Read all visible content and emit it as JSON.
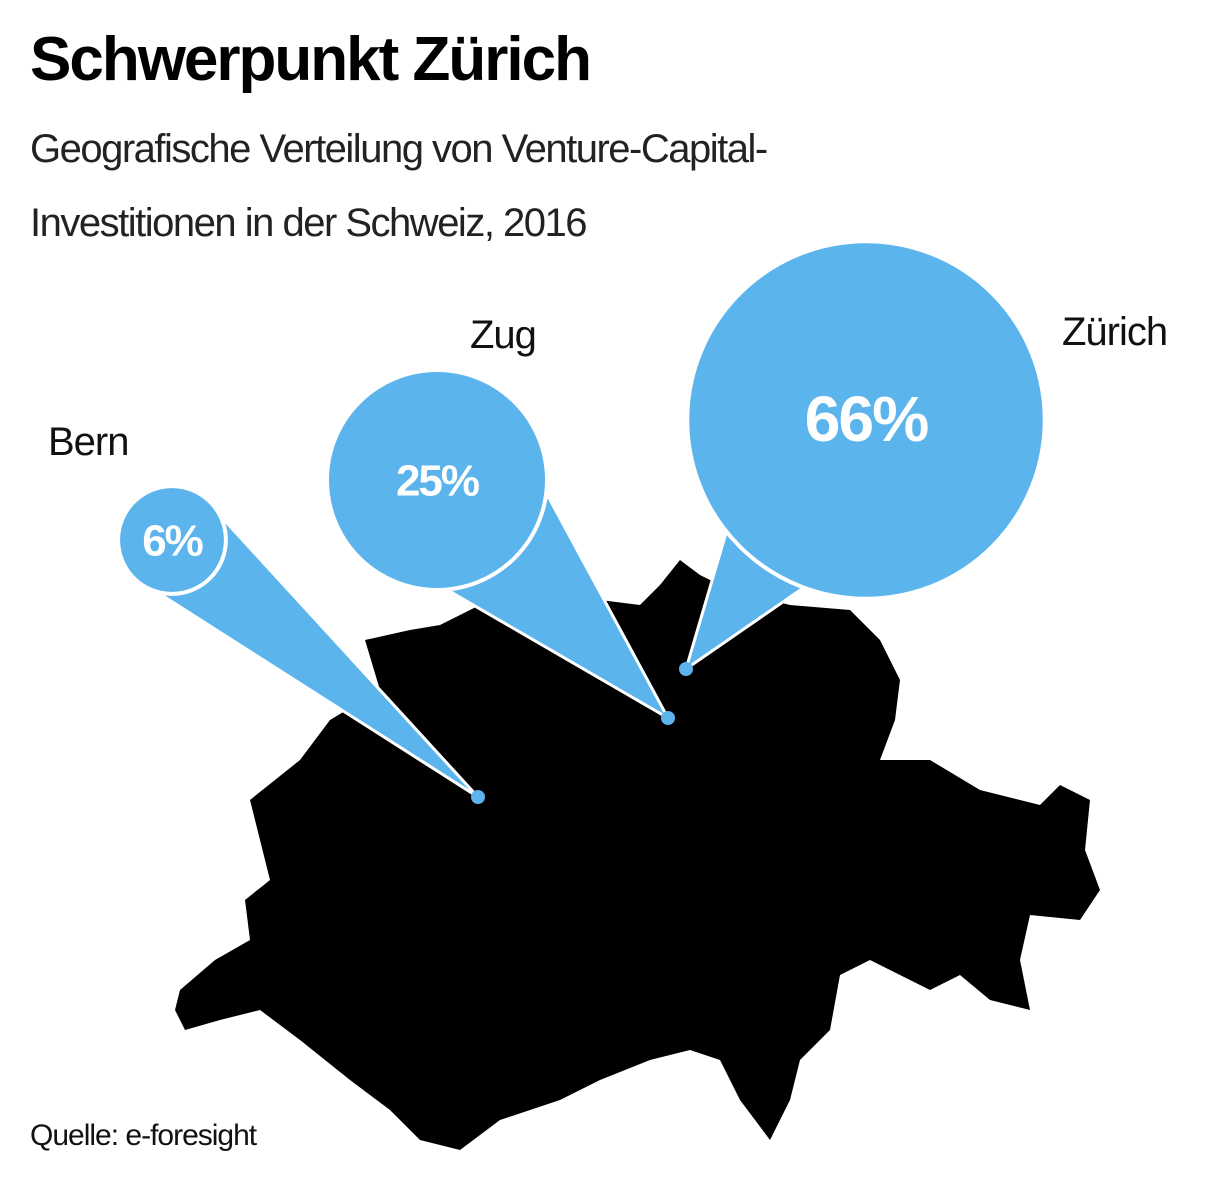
{
  "chart_data": {
    "type": "bubble",
    "title": "Schwerpunkt Zürich",
    "subtitle": [
      "Geografische Verteilung von Venture-Capital-",
      "Investitionen in der Schweiz, 2016"
    ],
    "categories": [
      "Bern",
      "Zug",
      "Zürich"
    ],
    "values": [
      6,
      25,
      66
    ],
    "value_labels": [
      "6%",
      "25%",
      "66%"
    ],
    "color": "#5bb4ec",
    "source": "Quelle: e-foresight"
  }
}
